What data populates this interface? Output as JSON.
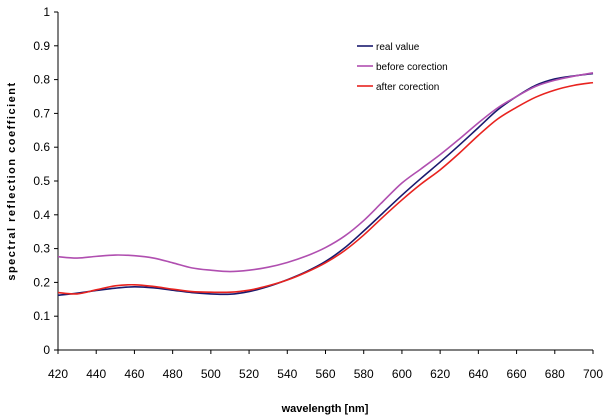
{
  "chart_data": {
    "type": "line",
    "title": "",
    "xlabel": "wavelength [nm]",
    "ylabel": "spectral reflection coefficient",
    "xlim": [
      420,
      700
    ],
    "ylim": [
      0,
      1
    ],
    "x_ticks": [
      "420",
      "440",
      "460",
      "480",
      "500",
      "520",
      "540",
      "560",
      "580",
      "600",
      "620",
      "640",
      "660",
      "680",
      "700"
    ],
    "y_ticks": [
      "0",
      "0.1",
      "0.2",
      "0.3",
      "0.4",
      "0.5",
      "0.6",
      "0.7",
      "0.8",
      "0.9",
      "1"
    ],
    "grid": false,
    "legend_position": "top-right",
    "x": [
      420,
      430,
      440,
      450,
      460,
      470,
      480,
      490,
      500,
      510,
      520,
      530,
      540,
      550,
      560,
      570,
      580,
      590,
      600,
      610,
      620,
      630,
      640,
      650,
      660,
      670,
      680,
      690,
      700
    ],
    "series": [
      {
        "name": "real value",
        "color": "#1a1a6e",
        "values": [
          0.162,
          0.168,
          0.176,
          0.183,
          0.187,
          0.184,
          0.177,
          0.17,
          0.166,
          0.165,
          0.173,
          0.188,
          0.208,
          0.232,
          0.262,
          0.302,
          0.352,
          0.405,
          0.458,
          0.508,
          0.556,
          0.606,
          0.658,
          0.71,
          0.75,
          0.783,
          0.802,
          0.811,
          0.818
        ]
      },
      {
        "name": "before corection",
        "color": "#b04fb0",
        "values": [
          0.276,
          0.272,
          0.277,
          0.281,
          0.279,
          0.272,
          0.258,
          0.243,
          0.236,
          0.232,
          0.236,
          0.245,
          0.259,
          0.278,
          0.303,
          0.337,
          0.383,
          0.439,
          0.494,
          0.536,
          0.578,
          0.624,
          0.672,
          0.716,
          0.75,
          0.78,
          0.798,
          0.81,
          0.82
        ]
      },
      {
        "name": "after corection",
        "color": "#e8231f",
        "values": [
          0.17,
          0.166,
          0.178,
          0.19,
          0.193,
          0.188,
          0.18,
          0.173,
          0.171,
          0.171,
          0.177,
          0.19,
          0.207,
          0.23,
          0.258,
          0.294,
          0.34,
          0.393,
          0.444,
          0.491,
          0.533,
          0.582,
          0.635,
          0.683,
          0.718,
          0.748,
          0.769,
          0.783,
          0.791
        ]
      }
    ]
  }
}
